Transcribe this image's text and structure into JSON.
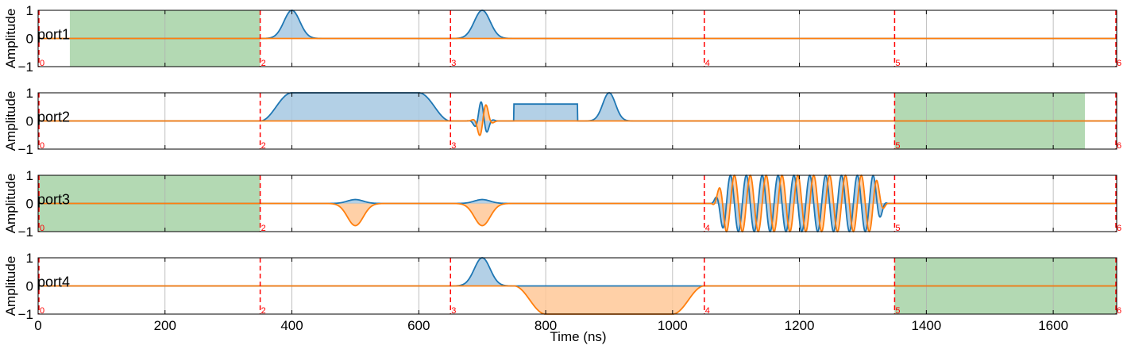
{
  "chart_data": {
    "type": "line",
    "xlabel": "Time (ns)",
    "ylabel": "Amplitude",
    "xlim": [
      0,
      1700
    ],
    "ylim": [
      -1,
      1
    ],
    "x_ticks": [
      0,
      200,
      400,
      600,
      800,
      1000,
      1200,
      1400,
      1600
    ],
    "x_tick_labels": [
      "0",
      "200",
      "400",
      "600",
      "800",
      "1000",
      "1200",
      "1400",
      "1600"
    ],
    "y_ticks": [
      -1,
      0,
      1
    ],
    "y_tick_labels": [
      "−1",
      "0",
      "1"
    ],
    "grid": true,
    "colors": {
      "i": "#1f77b4",
      "q": "#ff7f0e",
      "i_fill": "#a6c8e2",
      "q_fill": "#ffc898",
      "region": "#b3d9b3",
      "marker": "#ff0000"
    },
    "panels": [
      {
        "label": "port1",
        "regions": [
          [
            50,
            350
          ]
        ],
        "markers": [
          {
            "x": 0,
            "label": "0"
          },
          {
            "x": 350,
            "label": "2"
          },
          {
            "x": 650,
            "label": "3"
          },
          {
            "x": 1050,
            "label": "4"
          },
          {
            "x": 1350,
            "label": "5"
          },
          {
            "x": 1700,
            "label": "6"
          }
        ],
        "pulses": [
          {
            "kind": "gauss",
            "start": 350,
            "end": 450,
            "amp": 1.0,
            "phase": 0
          },
          {
            "kind": "gauss",
            "start": 650,
            "end": 750,
            "amp": 1.0,
            "phase": 0
          }
        ]
      },
      {
        "label": "port2",
        "regions": [
          [
            1350,
            1650
          ]
        ],
        "markers": [
          {
            "x": 0,
            "label": "0"
          },
          {
            "x": 350,
            "label": "2"
          },
          {
            "x": 650,
            "label": "3"
          },
          {
            "x": 1350,
            "label": "5"
          },
          {
            "x": 1700,
            "label": "6"
          }
        ],
        "pulses": [
          {
            "kind": "flattop",
            "start": 350,
            "end": 650,
            "amp": 1.0,
            "rise": 50,
            "phase": 0
          },
          {
            "kind": "drag",
            "start": 670,
            "end": 730,
            "amp": 0.7
          },
          {
            "kind": "square",
            "start": 750,
            "end": 850,
            "amp": 0.6,
            "phase": 0
          },
          {
            "kind": "gauss",
            "start": 860,
            "end": 940,
            "amp": 1.0,
            "phase": 0
          }
        ]
      },
      {
        "label": "port3",
        "regions": [
          [
            0,
            350
          ]
        ],
        "markers": [
          {
            "x": 0,
            "label": "0"
          },
          {
            "x": 350,
            "label": "2"
          },
          {
            "x": 1050,
            "label": "4"
          },
          {
            "x": 1350,
            "label": "5"
          },
          {
            "x": 1700,
            "label": "6"
          }
        ],
        "pulses": [
          {
            "kind": "gauss",
            "start": 450,
            "end": 550,
            "amp": 0.8,
            "phase": -80
          },
          {
            "kind": "gauss",
            "start": 650,
            "end": 750,
            "amp": 0.8,
            "phase": -80
          },
          {
            "kind": "chirp",
            "start": 1060,
            "end": 1340,
            "amp": 1.0,
            "freq": 0.04
          }
        ]
      },
      {
        "label": "port4",
        "regions": [
          [
            1350,
            1700
          ]
        ],
        "markers": [
          {
            "x": 0,
            "label": "0"
          },
          {
            "x": 350,
            "label": "2"
          },
          {
            "x": 650,
            "label": "3"
          },
          {
            "x": 1050,
            "label": "4"
          },
          {
            "x": 1350,
            "label": "5"
          },
          {
            "x": 1700,
            "label": "6"
          }
        ],
        "pulses": [
          {
            "kind": "gauss",
            "start": 650,
            "end": 750,
            "amp": 1.0,
            "phase": 0
          },
          {
            "kind": "flattop",
            "start": 750,
            "end": 1050,
            "amp": 1.0,
            "rise": 50,
            "phase": -90
          }
        ]
      }
    ]
  }
}
